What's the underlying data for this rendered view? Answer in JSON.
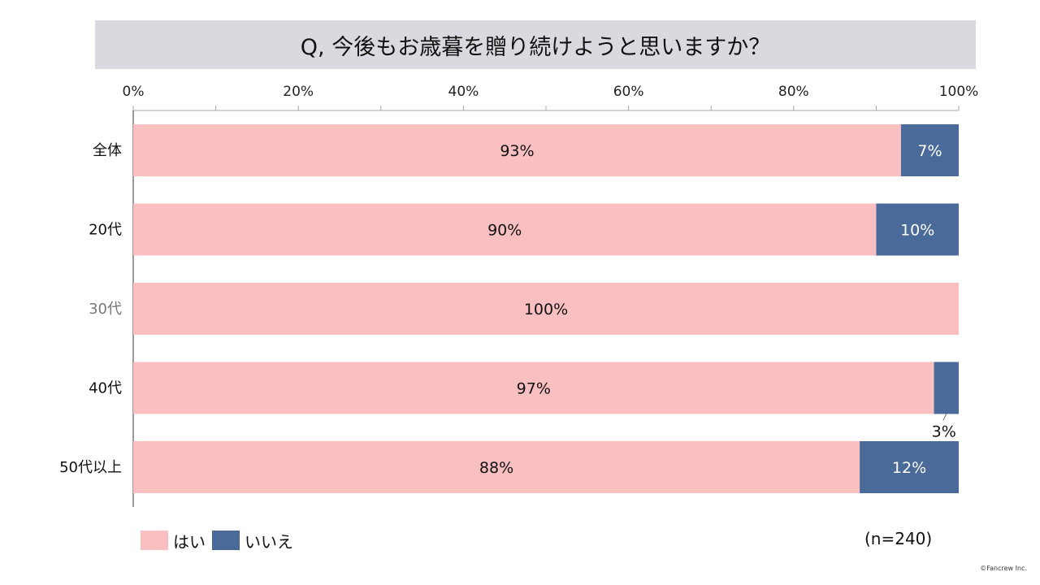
{
  "title": "Q, 今後もお歳暮を贈り続けようと思いますか？",
  "sample_size": "(n=240)",
  "copyright": "©Fancrew Inc.",
  "colors": {
    "yes": "#f9bfc1",
    "no": "#4a6b99",
    "no_label": "#ffffff",
    "muted_category": "#777777"
  },
  "chart_data": {
    "type": "bar",
    "orientation": "horizontal",
    "stacked": true,
    "title": "Q, 今後もお歳暮を贈り続けようと思いますか？",
    "categories": [
      "全体",
      "20代",
      "30代",
      "40代",
      "50代以上"
    ],
    "series": [
      {
        "name": "はい",
        "values": [
          93,
          90,
          100,
          97,
          88
        ],
        "labels": [
          "93%",
          "90%",
          "100%",
          "97%",
          "88%"
        ]
      },
      {
        "name": "いいえ",
        "values": [
          7,
          10,
          0,
          3,
          12
        ],
        "labels": [
          "7%",
          "10%",
          "",
          "3%",
          "12%"
        ]
      }
    ],
    "xlim": [
      0,
      100
    ],
    "x_ticks": [
      "0%",
      "20%",
      "40%",
      "60%",
      "80%",
      "100%"
    ],
    "legend_position": "bottom-left",
    "grid": false
  }
}
